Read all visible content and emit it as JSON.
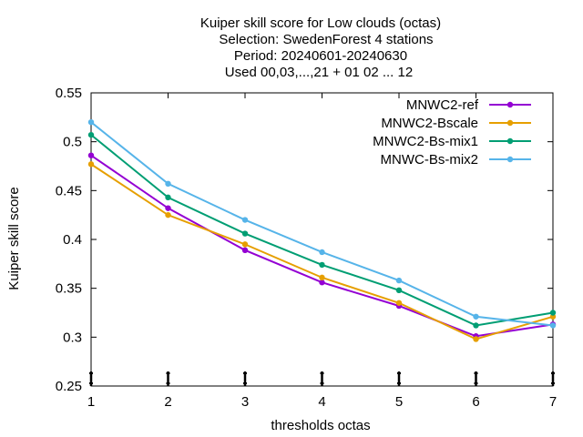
{
  "chart_data": {
    "type": "line",
    "title_lines": [
      "Kuiper skill score  for Low clouds (octas)",
      "Selection: SwedenForest      4 stations",
      "Period: 20240601-20240630",
      "Used 00,03,...,21 + 01 02 ... 12"
    ],
    "xlabel": "thresholds octas",
    "ylabel": "Kuiper skill score",
    "x": [
      1,
      2,
      3,
      4,
      5,
      6,
      7
    ],
    "xlim": [
      1,
      7
    ],
    "ylim": [
      0.25,
      0.55
    ],
    "x_ticks": [
      "1",
      "2",
      "3",
      "4",
      "5",
      "6",
      "7"
    ],
    "y_ticks": [
      {
        "value": 0.25,
        "label": "0.25"
      },
      {
        "value": 0.3,
        "label": "0.3"
      },
      {
        "value": 0.35,
        "label": "0.35"
      },
      {
        "value": 0.4,
        "label": "0.4"
      },
      {
        "value": 0.45,
        "label": "0.45"
      },
      {
        "value": 0.5,
        "label": "0.5"
      },
      {
        "value": 0.55,
        "label": "0.55"
      }
    ],
    "grid": false,
    "legend_position": "top-right",
    "series": [
      {
        "name": "MNWC2-ref",
        "color": "#9400d3",
        "values": [
          0.486,
          0.432,
          0.389,
          0.356,
          0.332,
          0.301,
          0.313
        ]
      },
      {
        "name": "MNWC2-Bscale",
        "color": "#e69f00",
        "values": [
          0.477,
          0.425,
          0.395,
          0.361,
          0.335,
          0.298,
          0.321
        ]
      },
      {
        "name": "MNWC2-Bs-mix1",
        "color": "#009e73",
        "values": [
          0.507,
          0.443,
          0.406,
          0.374,
          0.348,
          0.312,
          0.325
        ]
      },
      {
        "name": "MNWC-Bs-mix2",
        "color": "#56b4e9",
        "values": [
          0.52,
          0.457,
          0.42,
          0.387,
          0.358,
          0.321,
          0.312
        ]
      }
    ]
  }
}
